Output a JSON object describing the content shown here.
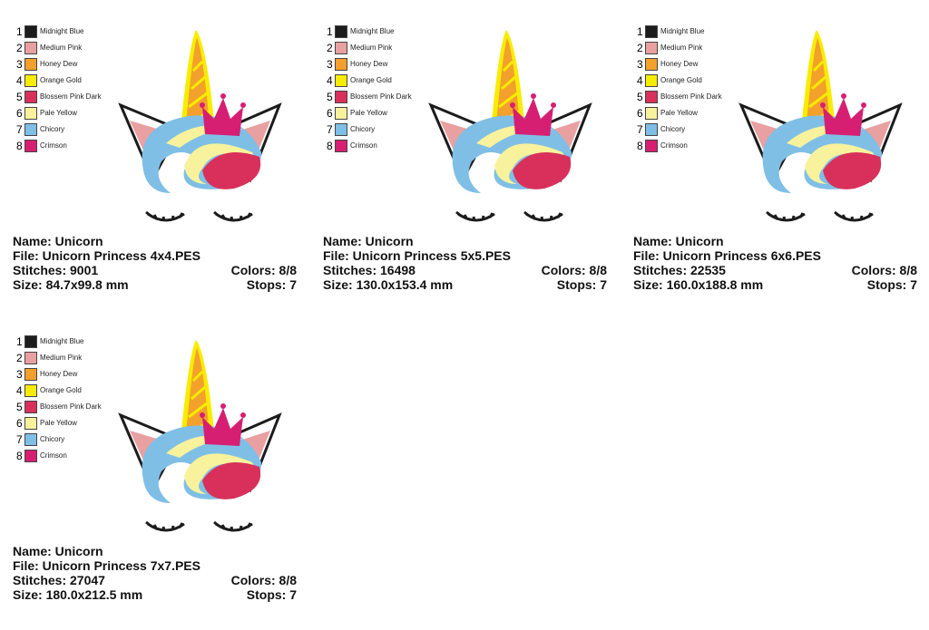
{
  "panels": [
    {
      "colors": [
        {
          "number": "1",
          "name": "Midnight Blue",
          "color": "#1c1c1c"
        },
        {
          "number": "2",
          "name": "Medium Pink",
          "color": "#e9a0a0"
        },
        {
          "number": "3",
          "name": "Honey Dew",
          "color": "#f3a02c"
        },
        {
          "number": "4",
          "name": "Orange Gold",
          "color": "#f8ec00"
        },
        {
          "number": "5",
          "name": "Blossem Pink Dark",
          "color": "#d8305a"
        },
        {
          "number": "6",
          "name": "Pale Yellow",
          "color": "#f8f29c"
        },
        {
          "number": "7",
          "name": "Chicory",
          "color": "#7fbfe6"
        },
        {
          "number": "8",
          "name": "Crimson",
          "color": "#d61f72"
        }
      ],
      "name": "Name: Unicorn",
      "file": "File: Unicorn Princess 4x4.PES",
      "stitches": "Stitches: 9001",
      "colors_used": "Colors: 8/8",
      "size": "Size: 84.7x99.8 mm",
      "stops": "Stops: 7"
    },
    {
      "colors": [
        {
          "number": "1",
          "name": "Midnight Blue",
          "color": "#1c1c1c"
        },
        {
          "number": "2",
          "name": "Medium Pink",
          "color": "#e9a0a0"
        },
        {
          "number": "3",
          "name": "Honey Dew",
          "color": "#f3a02c"
        },
        {
          "number": "4",
          "name": "Orange Gold",
          "color": "#f8ec00"
        },
        {
          "number": "5",
          "name": "Blossem Pink Dark",
          "color": "#d8305a"
        },
        {
          "number": "6",
          "name": "Pale Yellow",
          "color": "#f8f29c"
        },
        {
          "number": "7",
          "name": "Chicory",
          "color": "#7fbfe6"
        },
        {
          "number": "8",
          "name": "Crimson",
          "color": "#d61f72"
        }
      ],
      "name": "Name: Unicorn",
      "file": "File: Unicorn Princess 5x5.PES",
      "stitches": "Stitches: 16498",
      "colors_used": "Colors: 8/8",
      "size": "Size: 130.0x153.4 mm",
      "stops": "Stops: 7"
    },
    {
      "colors": [
        {
          "number": "1",
          "name": "Midnight Blue",
          "color": "#1c1c1c"
        },
        {
          "number": "2",
          "name": "Medium Pink",
          "color": "#e9a0a0"
        },
        {
          "number": "3",
          "name": "Honey Dew",
          "color": "#f3a02c"
        },
        {
          "number": "4",
          "name": "Orange Gold",
          "color": "#f8ec00"
        },
        {
          "number": "5",
          "name": "Blossem Pink Dark",
          "color": "#d8305a"
        },
        {
          "number": "6",
          "name": "Pale Yellow",
          "color": "#f8f29c"
        },
        {
          "number": "7",
          "name": "Chicory",
          "color": "#7fbfe6"
        },
        {
          "number": "8",
          "name": "Crimson",
          "color": "#d61f72"
        }
      ],
      "name": "Name: Unicorn",
      "file": "File: Unicorn Princess 6x6.PES",
      "stitches": "Stitches: 22535",
      "colors_used": "Colors: 8/8",
      "size": "Size: 160.0x188.8 mm",
      "stops": "Stops: 7"
    },
    {
      "colors": [
        {
          "number": "1",
          "name": "Midnight Blue",
          "color": "#1c1c1c"
        },
        {
          "number": "2",
          "name": "Medium Pink",
          "color": "#e9a0a0"
        },
        {
          "number": "3",
          "name": "Honey Dew",
          "color": "#f3a02c"
        },
        {
          "number": "4",
          "name": "Orange Gold",
          "color": "#f8ec00"
        },
        {
          "number": "5",
          "name": "Blossem Pink Dark",
          "color": "#d8305a"
        },
        {
          "number": "6",
          "name": "Pale Yellow",
          "color": "#f8f29c"
        },
        {
          "number": "7",
          "name": "Chicory",
          "color": "#7fbfe6"
        },
        {
          "number": "8",
          "name": "Crimson",
          "color": "#d61f72"
        }
      ],
      "name": "Name: Unicorn",
      "file": "File: Unicorn Princess 7x7.PES",
      "stitches": "Stitches: 27047",
      "colors_used": "Colors: 8/8",
      "size": "Size: 180.0x212.5 mm",
      "stops": "Stops: 7"
    }
  ]
}
